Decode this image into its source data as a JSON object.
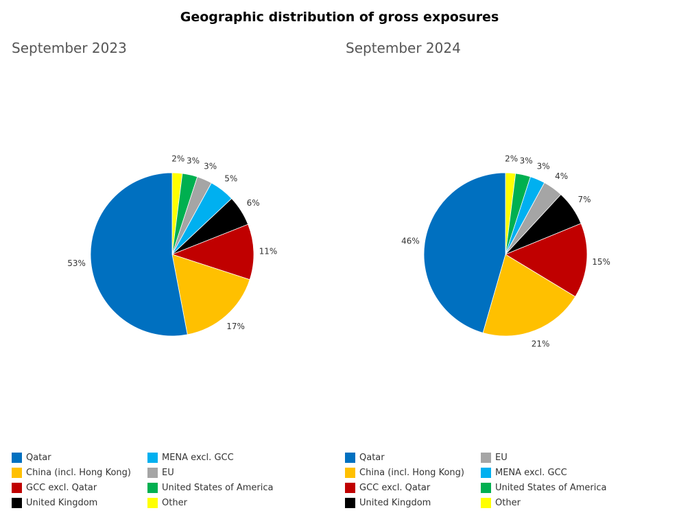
{
  "title": "Geographic distribution of gross exposures",
  "chart_data": [
    {
      "type": "pie",
      "title": "September 2023",
      "slices": [
        {
          "label": "Other",
          "value": 2,
          "display": "2%",
          "color": "#FFFF00"
        },
        {
          "label": "United States of America",
          "value": 3,
          "display": "3%",
          "color": "#00B050"
        },
        {
          "label": "EU",
          "value": 3,
          "display": "3%",
          "color": "#A5A5A5"
        },
        {
          "label": "MENA excl. GCC",
          "value": 5,
          "display": "5%",
          "color": "#00B0F0"
        },
        {
          "label": "United Kingdom",
          "value": 6,
          "display": "6%",
          "color": "#000000"
        },
        {
          "label": "GCC excl. Qatar",
          "value": 11,
          "display": "11%",
          "color": "#C00000"
        },
        {
          "label": "China (incl. Hong Kong)",
          "value": 17,
          "display": "17%",
          "color": "#FFC000"
        },
        {
          "label": "Qatar",
          "value": 53,
          "display": "53%",
          "color": "#0070C0"
        }
      ],
      "legend": [
        {
          "label": "Qatar",
          "color": "#0070C0"
        },
        {
          "label": "China (incl. Hong Kong)",
          "color": "#FFC000"
        },
        {
          "label": "GCC excl. Qatar",
          "color": "#C00000"
        },
        {
          "label": "United Kingdom",
          "color": "#000000"
        },
        {
          "label": "MENA excl. GCC",
          "color": "#00B0F0"
        },
        {
          "label": "EU",
          "color": "#A5A5A5"
        },
        {
          "label": "United States of America",
          "color": "#00B050"
        },
        {
          "label": "Other",
          "color": "#FFFF00"
        }
      ],
      "legend_position": "bottom"
    },
    {
      "type": "pie",
      "title": "September 2024",
      "slices": [
        {
          "label": "Other",
          "value": 2,
          "display": "2%",
          "color": "#FFFF00"
        },
        {
          "label": "United States of America",
          "value": 3,
          "display": "3%",
          "color": "#00B050"
        },
        {
          "label": "MENA excl. GCC",
          "value": 3,
          "display": "3%",
          "color": "#00B0F0"
        },
        {
          "label": "EU",
          "value": 4,
          "display": "4%",
          "color": "#A5A5A5"
        },
        {
          "label": "United Kingdom",
          "value": 7,
          "display": "7%",
          "color": "#000000"
        },
        {
          "label": "GCC excl. Qatar",
          "value": 15,
          "display": "15%",
          "color": "#C00000"
        },
        {
          "label": "China (incl. Hong Kong)",
          "value": 21,
          "display": "21%",
          "color": "#FFC000"
        },
        {
          "label": "Qatar",
          "value": 46,
          "display": "46%",
          "color": "#0070C0"
        }
      ],
      "legend": [
        {
          "label": "Qatar",
          "color": "#0070C0"
        },
        {
          "label": "China (incl. Hong Kong)",
          "color": "#FFC000"
        },
        {
          "label": "GCC excl. Qatar",
          "color": "#C00000"
        },
        {
          "label": "United Kingdom",
          "color": "#000000"
        },
        {
          "label": "EU",
          "color": "#A5A5A5"
        },
        {
          "label": "MENA excl. GCC",
          "color": "#00B0F0"
        },
        {
          "label": "United States of America",
          "color": "#00B050"
        },
        {
          "label": "Other",
          "color": "#FFFF00"
        }
      ],
      "legend_position": "bottom"
    }
  ]
}
